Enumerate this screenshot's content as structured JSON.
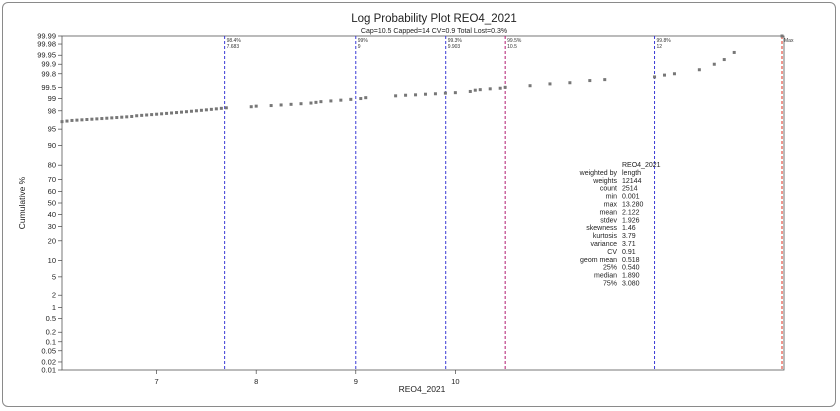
{
  "chart_data": {
    "type": "scatter",
    "title": "Log Probability Plot REO4_2021",
    "subtitle": "Cap=10.5 Capped=14 CV=0.9 Total Lost=0.3%",
    "xlabel": "REO4_2021",
    "ylabel": "Cumulative %",
    "xlim": [
      6.05,
      13.3
    ],
    "x_ticks": [
      7,
      8,
      9,
      10
    ],
    "y_ticks": [
      "0.01",
      "0.02",
      "0.05",
      "0.1",
      "0.2",
      "0.5",
      "1",
      "2",
      "5",
      "10",
      "20",
      "30",
      "40",
      "50",
      "60",
      "70",
      "80",
      "90",
      "95",
      "98",
      "99",
      "99.5",
      "99.8",
      "99.9",
      "99.95",
      "99.98",
      "99.99"
    ],
    "y_tick_values": [
      0.01,
      0.02,
      0.05,
      0.1,
      0.2,
      0.5,
      1,
      2,
      5,
      10,
      20,
      30,
      40,
      50,
      60,
      70,
      80,
      90,
      95,
      98,
      99,
      99.5,
      99.8,
      99.9,
      99.95,
      99.98,
      99.99
    ],
    "grid": false,
    "points": [
      [
        6.05,
        96.5
      ],
      [
        6.1,
        96.6
      ],
      [
        6.15,
        96.7
      ],
      [
        6.2,
        96.75
      ],
      [
        6.25,
        96.8
      ],
      [
        6.3,
        96.85
      ],
      [
        6.35,
        96.9
      ],
      [
        6.4,
        96.95
      ],
      [
        6.45,
        97.0
      ],
      [
        6.5,
        97.05
      ],
      [
        6.55,
        97.1
      ],
      [
        6.6,
        97.15
      ],
      [
        6.65,
        97.2
      ],
      [
        6.7,
        97.25
      ],
      [
        6.75,
        97.3
      ],
      [
        6.8,
        97.4
      ],
      [
        6.85,
        97.45
      ],
      [
        6.9,
        97.5
      ],
      [
        6.95,
        97.55
      ],
      [
        7.0,
        97.6
      ],
      [
        7.05,
        97.65
      ],
      [
        7.1,
        97.7
      ],
      [
        7.15,
        97.75
      ],
      [
        7.2,
        97.8
      ],
      [
        7.25,
        97.85
      ],
      [
        7.3,
        97.9
      ],
      [
        7.35,
        97.95
      ],
      [
        7.4,
        98.0
      ],
      [
        7.45,
        98.05
      ],
      [
        7.5,
        98.1
      ],
      [
        7.55,
        98.15
      ],
      [
        7.6,
        98.2
      ],
      [
        7.65,
        98.25
      ],
      [
        7.7,
        98.3
      ],
      [
        7.95,
        98.4
      ],
      [
        8.0,
        98.45
      ],
      [
        8.15,
        98.5
      ],
      [
        8.25,
        98.55
      ],
      [
        8.35,
        98.6
      ],
      [
        8.45,
        98.65
      ],
      [
        8.55,
        98.7
      ],
      [
        8.6,
        98.75
      ],
      [
        8.65,
        98.8
      ],
      [
        8.75,
        98.85
      ],
      [
        8.85,
        98.9
      ],
      [
        8.95,
        98.95
      ],
      [
        9.05,
        99.0
      ],
      [
        9.1,
        99.05
      ],
      [
        9.4,
        99.15
      ],
      [
        9.5,
        99.18
      ],
      [
        9.6,
        99.2
      ],
      [
        9.7,
        99.23
      ],
      [
        9.8,
        99.25
      ],
      [
        9.9,
        99.28
      ],
      [
        10.0,
        99.3
      ],
      [
        10.15,
        99.35
      ],
      [
        10.2,
        99.4
      ],
      [
        10.25,
        99.42
      ],
      [
        10.35,
        99.45
      ],
      [
        10.45,
        99.47
      ],
      [
        10.5,
        99.5
      ],
      [
        10.75,
        99.55
      ],
      [
        10.95,
        99.6
      ],
      [
        11.15,
        99.63
      ],
      [
        11.35,
        99.68
      ],
      [
        11.5,
        99.7
      ],
      [
        12.0,
        99.75
      ],
      [
        12.1,
        99.78
      ],
      [
        12.2,
        99.8
      ],
      [
        12.45,
        99.85
      ],
      [
        12.6,
        99.9
      ],
      [
        12.7,
        99.93
      ],
      [
        12.8,
        99.96
      ],
      [
        13.28,
        99.99
      ]
    ],
    "percentile_lines": [
      {
        "label": "98.4%",
        "value": "7.683",
        "x": 7.683,
        "color": "#3a3ad6"
      },
      {
        "label": "99%",
        "value": "9",
        "x": 9.0,
        "color": "#3a3ad6"
      },
      {
        "label": "99.3%",
        "value": "9.903",
        "x": 9.903,
        "color": "#3a3ad6"
      },
      {
        "label": "99.5%",
        "value": "10.5",
        "x": 10.5,
        "color": "#b01a70"
      },
      {
        "label": "99.8%",
        "value": "12",
        "x": 12.0,
        "color": "#3a3ad6"
      },
      {
        "label": "Max",
        "value": "",
        "x": 13.28,
        "color": "#e0301e"
      }
    ],
    "point_color": "#777777",
    "stats": {
      "title": "REO4_2021",
      "rows": [
        [
          "weighted by",
          "length"
        ],
        [
          "weights",
          "12144"
        ],
        [
          "count",
          "2514"
        ],
        [
          "min",
          "0.001"
        ],
        [
          "max",
          "13.280"
        ],
        [
          "mean",
          "2.122"
        ],
        [
          "stdev",
          "1.926"
        ],
        [
          "skewness",
          "1.46"
        ],
        [
          "kurtosis",
          "3.79"
        ],
        [
          "variance",
          "3.71"
        ],
        [
          "CV",
          "0.91"
        ],
        [
          "geom mean",
          "0.518"
        ],
        [
          "25%",
          "0.540"
        ],
        [
          "median",
          "1.890"
        ],
        [
          "75%",
          "3.080"
        ]
      ]
    }
  }
}
